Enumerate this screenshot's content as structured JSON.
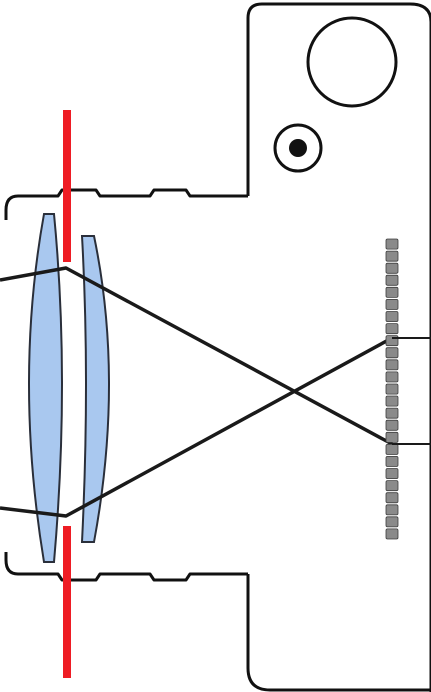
{
  "diagram": {
    "subject": "camera-lens-aperture-cross-section",
    "colors": {
      "outline": "#111111",
      "lens_fill": "#a9c8ef",
      "lens_stroke": "#2a2f3a",
      "aperture": "#ee1c24",
      "ray": "#1a1a1a",
      "sensor_cell": "#8a8a8a",
      "sensor_cell_stroke": "#3c3c3c",
      "background": "#ffffff"
    },
    "sensor": {
      "cell_count": 25
    }
  }
}
